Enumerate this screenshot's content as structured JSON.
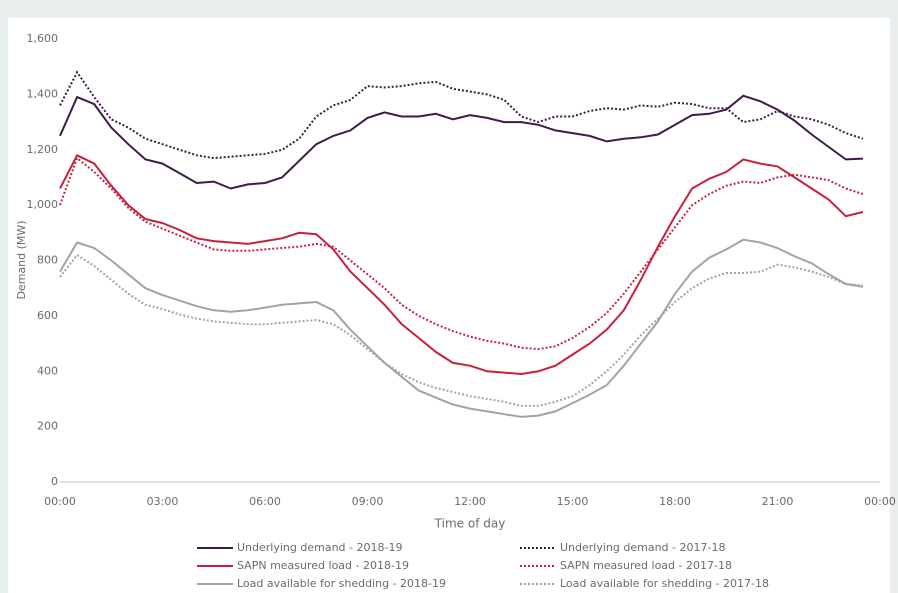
{
  "chart_data": {
    "type": "line",
    "x_label": "Time of day",
    "y_label": "Demand (MW)",
    "x": [
      0,
      0.5,
      1,
      1.5,
      2,
      2.5,
      3,
      3.5,
      4,
      4.5,
      5,
      5.5,
      6,
      6.5,
      7,
      7.5,
      8,
      8.5,
      9,
      9.5,
      10,
      10.5,
      11,
      11.5,
      12,
      12.5,
      13,
      13.5,
      14,
      14.5,
      15,
      15.5,
      16,
      16.5,
      17,
      17.5,
      18,
      18.5,
      19,
      19.5,
      20,
      20.5,
      21,
      21.5,
      22,
      22.5,
      23,
      23.5
    ],
    "xlim": [
      0,
      24
    ],
    "xticks": [
      {
        "value": 0,
        "label": "00:00"
      },
      {
        "value": 3,
        "label": "03:00"
      },
      {
        "value": 6,
        "label": "06:00"
      },
      {
        "value": 9,
        "label": "09:00"
      },
      {
        "value": 12,
        "label": "12:00"
      },
      {
        "value": 15,
        "label": "15:00"
      },
      {
        "value": 18,
        "label": "18:00"
      },
      {
        "value": 21,
        "label": "21:00"
      },
      {
        "value": 24,
        "label": "00:00"
      }
    ],
    "ylim": [
      0,
      1600
    ],
    "yticks": [
      0,
      200,
      400,
      600,
      800,
      {
        "value": 1000,
        "label": "1,000"
      },
      {
        "value": 1200,
        "label": "1,200"
      },
      {
        "value": 1400,
        "label": "1,400"
      },
      {
        "value": 1600,
        "label": "1,600"
      }
    ],
    "grid": false,
    "series": [
      {
        "name": "Underlying demand - 2018-19",
        "color": "#3f1b47",
        "dash": "solid",
        "values": [
          1250,
          1390,
          1365,
          1280,
          1220,
          1165,
          1150,
          1115,
          1080,
          1085,
          1060,
          1075,
          1080,
          1100,
          1160,
          1220,
          1250,
          1270,
          1315,
          1335,
          1320,
          1320,
          1330,
          1310,
          1325,
          1315,
          1300,
          1300,
          1290,
          1270,
          1260,
          1250,
          1230,
          1240,
          1245,
          1255,
          1290,
          1325,
          1330,
          1345,
          1395,
          1375,
          1345,
          1305,
          1255,
          1210,
          1165,
          1168
        ]
      },
      {
        "name": "Underlying demand - 2017-18",
        "color": "#3f1b47",
        "dash": "dotted",
        "values": [
          1360,
          1480,
          1390,
          1310,
          1280,
          1240,
          1220,
          1200,
          1180,
          1170,
          1175,
          1180,
          1185,
          1200,
          1240,
          1320,
          1360,
          1380,
          1430,
          1425,
          1430,
          1440,
          1445,
          1420,
          1410,
          1400,
          1380,
          1320,
          1300,
          1320,
          1320,
          1340,
          1350,
          1345,
          1360,
          1355,
          1370,
          1365,
          1350,
          1350,
          1300,
          1310,
          1340,
          1320,
          1310,
          1290,
          1260,
          1240
        ]
      },
      {
        "name": "SAPN measured load - 2018-19",
        "color": "#c8203c",
        "dash": "solid",
        "values": [
          1060,
          1180,
          1150,
          1070,
          1000,
          950,
          935,
          910,
          880,
          870,
          865,
          860,
          870,
          880,
          900,
          895,
          840,
          760,
          700,
          640,
          570,
          520,
          470,
          430,
          420,
          400,
          395,
          390,
          400,
          420,
          460,
          500,
          550,
          620,
          730,
          850,
          960,
          1060,
          1095,
          1120,
          1165,
          1150,
          1140,
          1100,
          1060,
          1020,
          960,
          975
        ]
      },
      {
        "name": "SAPN measured load - 2017-18",
        "color": "#c8203c",
        "dash": "dotted",
        "values": [
          1000,
          1170,
          1120,
          1060,
          990,
          940,
          915,
          890,
          865,
          840,
          835,
          835,
          840,
          845,
          850,
          860,
          850,
          800,
          750,
          700,
          640,
          600,
          570,
          545,
          525,
          510,
          500,
          485,
          480,
          490,
          520,
          560,
          610,
          680,
          760,
          840,
          920,
          1000,
          1040,
          1070,
          1085,
          1080,
          1100,
          1110,
          1100,
          1090,
          1060,
          1040
        ]
      },
      {
        "name": "Load available for shedding - 2018-19",
        "color": "#a3a3a3",
        "dash": "solid",
        "values": [
          760,
          865,
          845,
          800,
          750,
          700,
          675,
          655,
          635,
          620,
          615,
          620,
          630,
          640,
          645,
          650,
          620,
          550,
          490,
          430,
          380,
          330,
          305,
          280,
          265,
          255,
          245,
          235,
          240,
          255,
          285,
          315,
          350,
          420,
          500,
          580,
          680,
          760,
          810,
          840,
          875,
          865,
          845,
          815,
          790,
          750,
          715,
          705
        ]
      },
      {
        "name": "Load available for shedding - 2017-18",
        "color": "#a3a3a3",
        "dash": "dotted",
        "values": [
          740,
          820,
          780,
          730,
          680,
          640,
          625,
          605,
          590,
          580,
          575,
          570,
          570,
          575,
          580,
          585,
          570,
          530,
          480,
          430,
          390,
          360,
          340,
          325,
          310,
          300,
          290,
          275,
          275,
          290,
          310,
          350,
          400,
          460,
          530,
          590,
          650,
          700,
          735,
          755,
          755,
          760,
          785,
          775,
          760,
          740,
          715,
          710
        ]
      }
    ]
  }
}
